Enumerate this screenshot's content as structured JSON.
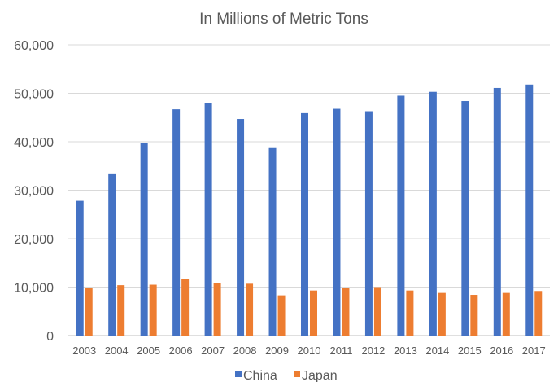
{
  "chart_data": {
    "type": "bar",
    "title": "In Millions of Metric Tons",
    "xlabel": "",
    "ylabel": "",
    "categories": [
      "2003",
      "2004",
      "2005",
      "2006",
      "2007",
      "2008",
      "2009",
      "2010",
      "2011",
      "2012",
      "2013",
      "2014",
      "2015",
      "2016",
      "2017"
    ],
    "series": [
      {
        "name": "China",
        "color": "#4472C4",
        "values": [
          27800,
          33300,
          39700,
          46700,
          47900,
          44700,
          38700,
          45900,
          46800,
          46300,
          49500,
          50300,
          48400,
          51100,
          51800
        ]
      },
      {
        "name": "Japan",
        "color": "#ED7D31",
        "values": [
          9900,
          10400,
          10500,
          11600,
          10900,
          10700,
          8300,
          9300,
          9800,
          10000,
          9300,
          8800,
          8400,
          8800,
          9200
        ]
      }
    ],
    "ylim": [
      0,
      60000
    ],
    "yticks": [
      "0",
      "10,000",
      "20,000",
      "30,000",
      "40,000",
      "50,000",
      "60,000"
    ],
    "grid": true,
    "legend_position": "bottom"
  }
}
